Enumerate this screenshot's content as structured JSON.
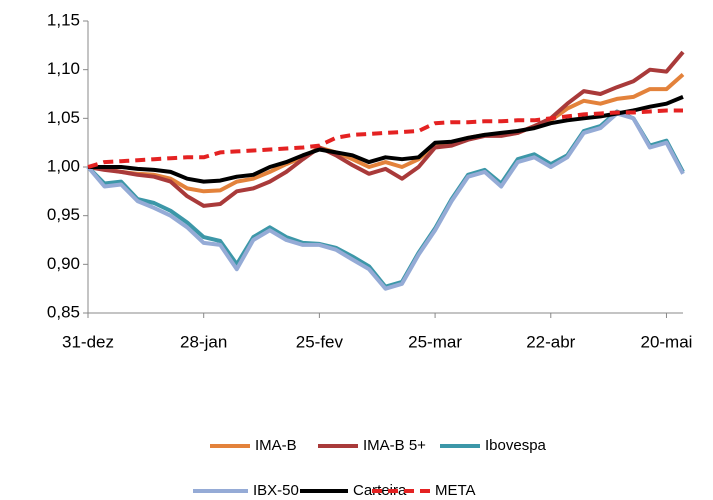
{
  "chart_data": {
    "type": "line",
    "categories": [
      "31-dez",
      null,
      null,
      null,
      null,
      null,
      null,
      "28-jan",
      null,
      null,
      null,
      null,
      null,
      null,
      "25-fev",
      null,
      null,
      null,
      null,
      null,
      null,
      "25-mar",
      null,
      null,
      null,
      null,
      null,
      null,
      "22-abr",
      null,
      null,
      null,
      null,
      null,
      null,
      "20-mai",
      null
    ],
    "ylim": [
      0.85,
      1.15
    ],
    "yticks": [
      {
        "value": 0.85,
        "label": "0,85"
      },
      {
        "value": 0.9,
        "label": "0,90"
      },
      {
        "value": 0.95,
        "label": "0,95"
      },
      {
        "value": 1.0,
        "label": "1,00"
      },
      {
        "value": 1.05,
        "label": "1,05"
      },
      {
        "value": 1.1,
        "label": "1,10"
      },
      {
        "value": 1.15,
        "label": "1,15"
      }
    ],
    "grid": false,
    "legend": "bottom",
    "series": [
      {
        "name": "IMA-B",
        "color": "#e3823b",
        "dash": false,
        "values": [
          1.0,
          0.998,
          0.995,
          0.993,
          0.992,
          0.988,
          0.978,
          0.975,
          0.976,
          0.985,
          0.988,
          0.995,
          1.003,
          1.01,
          1.02,
          1.015,
          1.008,
          1.0,
          1.005,
          1.0,
          1.008,
          1.022,
          1.025,
          1.03,
          1.033,
          1.033,
          1.035,
          1.042,
          1.048,
          1.06,
          1.068,
          1.065,
          1.07,
          1.072,
          1.08,
          1.08,
          1.095
        ]
      },
      {
        "name": "IMA-B 5+",
        "color": "#a93a3a",
        "dash": false,
        "values": [
          1.0,
          0.997,
          0.995,
          0.992,
          0.99,
          0.985,
          0.97,
          0.96,
          0.962,
          0.975,
          0.978,
          0.985,
          0.995,
          1.008,
          1.02,
          1.012,
          1.002,
          0.993,
          0.998,
          0.988,
          1.0,
          1.02,
          1.022,
          1.028,
          1.032,
          1.032,
          1.035,
          1.042,
          1.05,
          1.065,
          1.078,
          1.075,
          1.082,
          1.088,
          1.1,
          1.098,
          1.118
        ]
      },
      {
        "name": "Ibovespa",
        "color": "#3c97a8",
        "dash": false,
        "values": [
          1.0,
          0.983,
          0.985,
          0.967,
          0.963,
          0.955,
          0.943,
          0.928,
          0.924,
          0.9,
          0.928,
          0.938,
          0.928,
          0.922,
          0.921,
          0.917,
          0.908,
          0.898,
          0.877,
          0.882,
          0.912,
          0.937,
          0.967,
          0.992,
          0.997,
          0.983,
          1.008,
          1.013,
          1.003,
          1.012,
          1.037,
          1.042,
          1.057,
          1.05,
          1.022,
          1.027,
          0.995
        ]
      },
      {
        "name": "IBX-50",
        "color": "#95abd6",
        "dash": false,
        "values": [
          1.0,
          0.98,
          0.982,
          0.965,
          0.958,
          0.95,
          0.938,
          0.922,
          0.92,
          0.895,
          0.925,
          0.935,
          0.925,
          0.92,
          0.92,
          0.915,
          0.905,
          0.895,
          0.875,
          0.88,
          0.91,
          0.935,
          0.965,
          0.99,
          0.995,
          0.98,
          1.005,
          1.01,
          1.0,
          1.01,
          1.035,
          1.04,
          1.055,
          1.05,
          1.02,
          1.025,
          0.993
        ]
      },
      {
        "name": "Carteira",
        "color": "#000000",
        "dash": false,
        "values": [
          1.0,
          1.0,
          1.0,
          0.998,
          0.997,
          0.995,
          0.988,
          0.985,
          0.986,
          0.99,
          0.992,
          1.0,
          1.005,
          1.012,
          1.018,
          1.015,
          1.012,
          1.005,
          1.01,
          1.008,
          1.01,
          1.025,
          1.026,
          1.03,
          1.033,
          1.035,
          1.037,
          1.04,
          1.045,
          1.048,
          1.05,
          1.052,
          1.055,
          1.058,
          1.062,
          1.065,
          1.072
        ]
      },
      {
        "name": "META",
        "color": "#e42222",
        "dash": true,
        "values": [
          1.0,
          1.005,
          1.006,
          1.007,
          1.008,
          1.009,
          1.01,
          1.01,
          1.015,
          1.016,
          1.017,
          1.018,
          1.019,
          1.02,
          1.022,
          1.03,
          1.033,
          1.034,
          1.035,
          1.036,
          1.037,
          1.045,
          1.046,
          1.046,
          1.047,
          1.047,
          1.048,
          1.048,
          1.05,
          1.052,
          1.054,
          1.055,
          1.056,
          1.056,
          1.057,
          1.058,
          1.058
        ]
      }
    ]
  }
}
